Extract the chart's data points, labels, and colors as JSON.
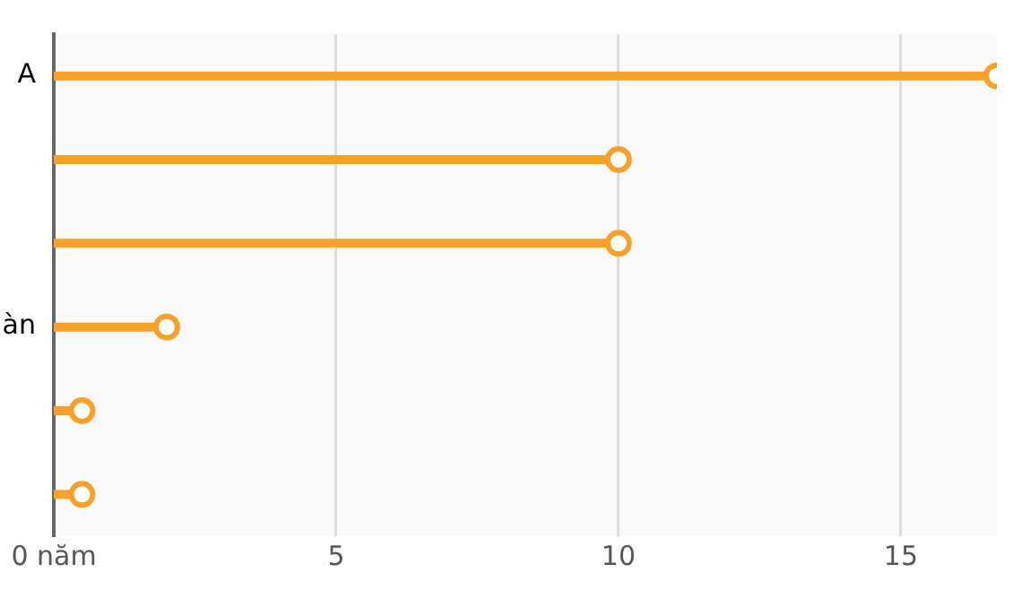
{
  "chart_data": {
    "type": "lollipop",
    "orientation": "horizontal",
    "categories": [
      "A",
      null,
      null,
      "àn",
      null,
      null
    ],
    "values": [
      16.7,
      10,
      10,
      2,
      0.5,
      0.5
    ],
    "color": "#f7a12b",
    "xlim": [
      0,
      16.7
    ],
    "xticks": [
      {
        "value": 0,
        "label": "0 năm"
      },
      5,
      10,
      15
    ],
    "grid": "x",
    "marker": "circle"
  }
}
